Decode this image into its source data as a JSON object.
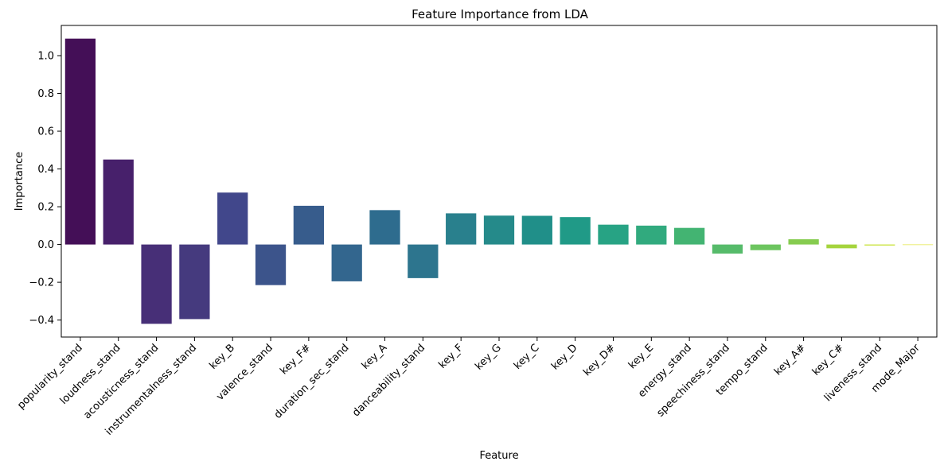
{
  "chart_data": {
    "type": "bar",
    "title": "Feature Importance from LDA",
    "xlabel": "Feature",
    "ylabel": "Importance",
    "ylim": [
      -0.49,
      1.16
    ],
    "yticks": [
      -0.4,
      -0.2,
      0.0,
      0.2,
      0.4,
      0.6,
      0.8,
      1.0
    ],
    "ytick_labels": [
      "−0.4",
      "−0.2",
      "0.0",
      "0.2",
      "0.4",
      "0.6",
      "0.8",
      "1.0"
    ],
    "grid": false,
    "palette": "viridis",
    "categories": [
      "popularity_stand",
      "loudness_stand",
      "acousticness_stand",
      "instrumentalness_stand",
      "key_B",
      "valence_stand",
      "key_F#",
      "duration_sec_stand",
      "key_A",
      "danceability_stand",
      "key_F",
      "key_G",
      "key_C",
      "key_D",
      "key_D#",
      "key_E",
      "energy_stand",
      "speechiness_stand",
      "tempo_stand",
      "key_A#",
      "key_C#",
      "liveness_stand",
      "mode_Major"
    ],
    "values": [
      1.09,
      0.45,
      -0.42,
      -0.395,
      0.275,
      -0.215,
      0.205,
      -0.195,
      0.182,
      -0.178,
      0.165,
      0.153,
      0.152,
      0.145,
      0.105,
      0.1,
      0.088,
      -0.048,
      -0.03,
      0.028,
      -0.02,
      -0.005,
      0.0
    ],
    "colors": [
      "#440f57",
      "#47206b",
      "#472f77",
      "#453a7e",
      "#41478b",
      "#3c548b",
      "#375c8c",
      "#33668e",
      "#2e6c8e",
      "#2d758e",
      "#29808d",
      "#258a8a",
      "#208f89",
      "#209a87",
      "#27a384",
      "#31aa7e",
      "#43b472",
      "#56bb6a",
      "#6cc55f",
      "#86cc4f",
      "#a5d43d",
      "#c2df26",
      "#dde11a"
    ]
  }
}
